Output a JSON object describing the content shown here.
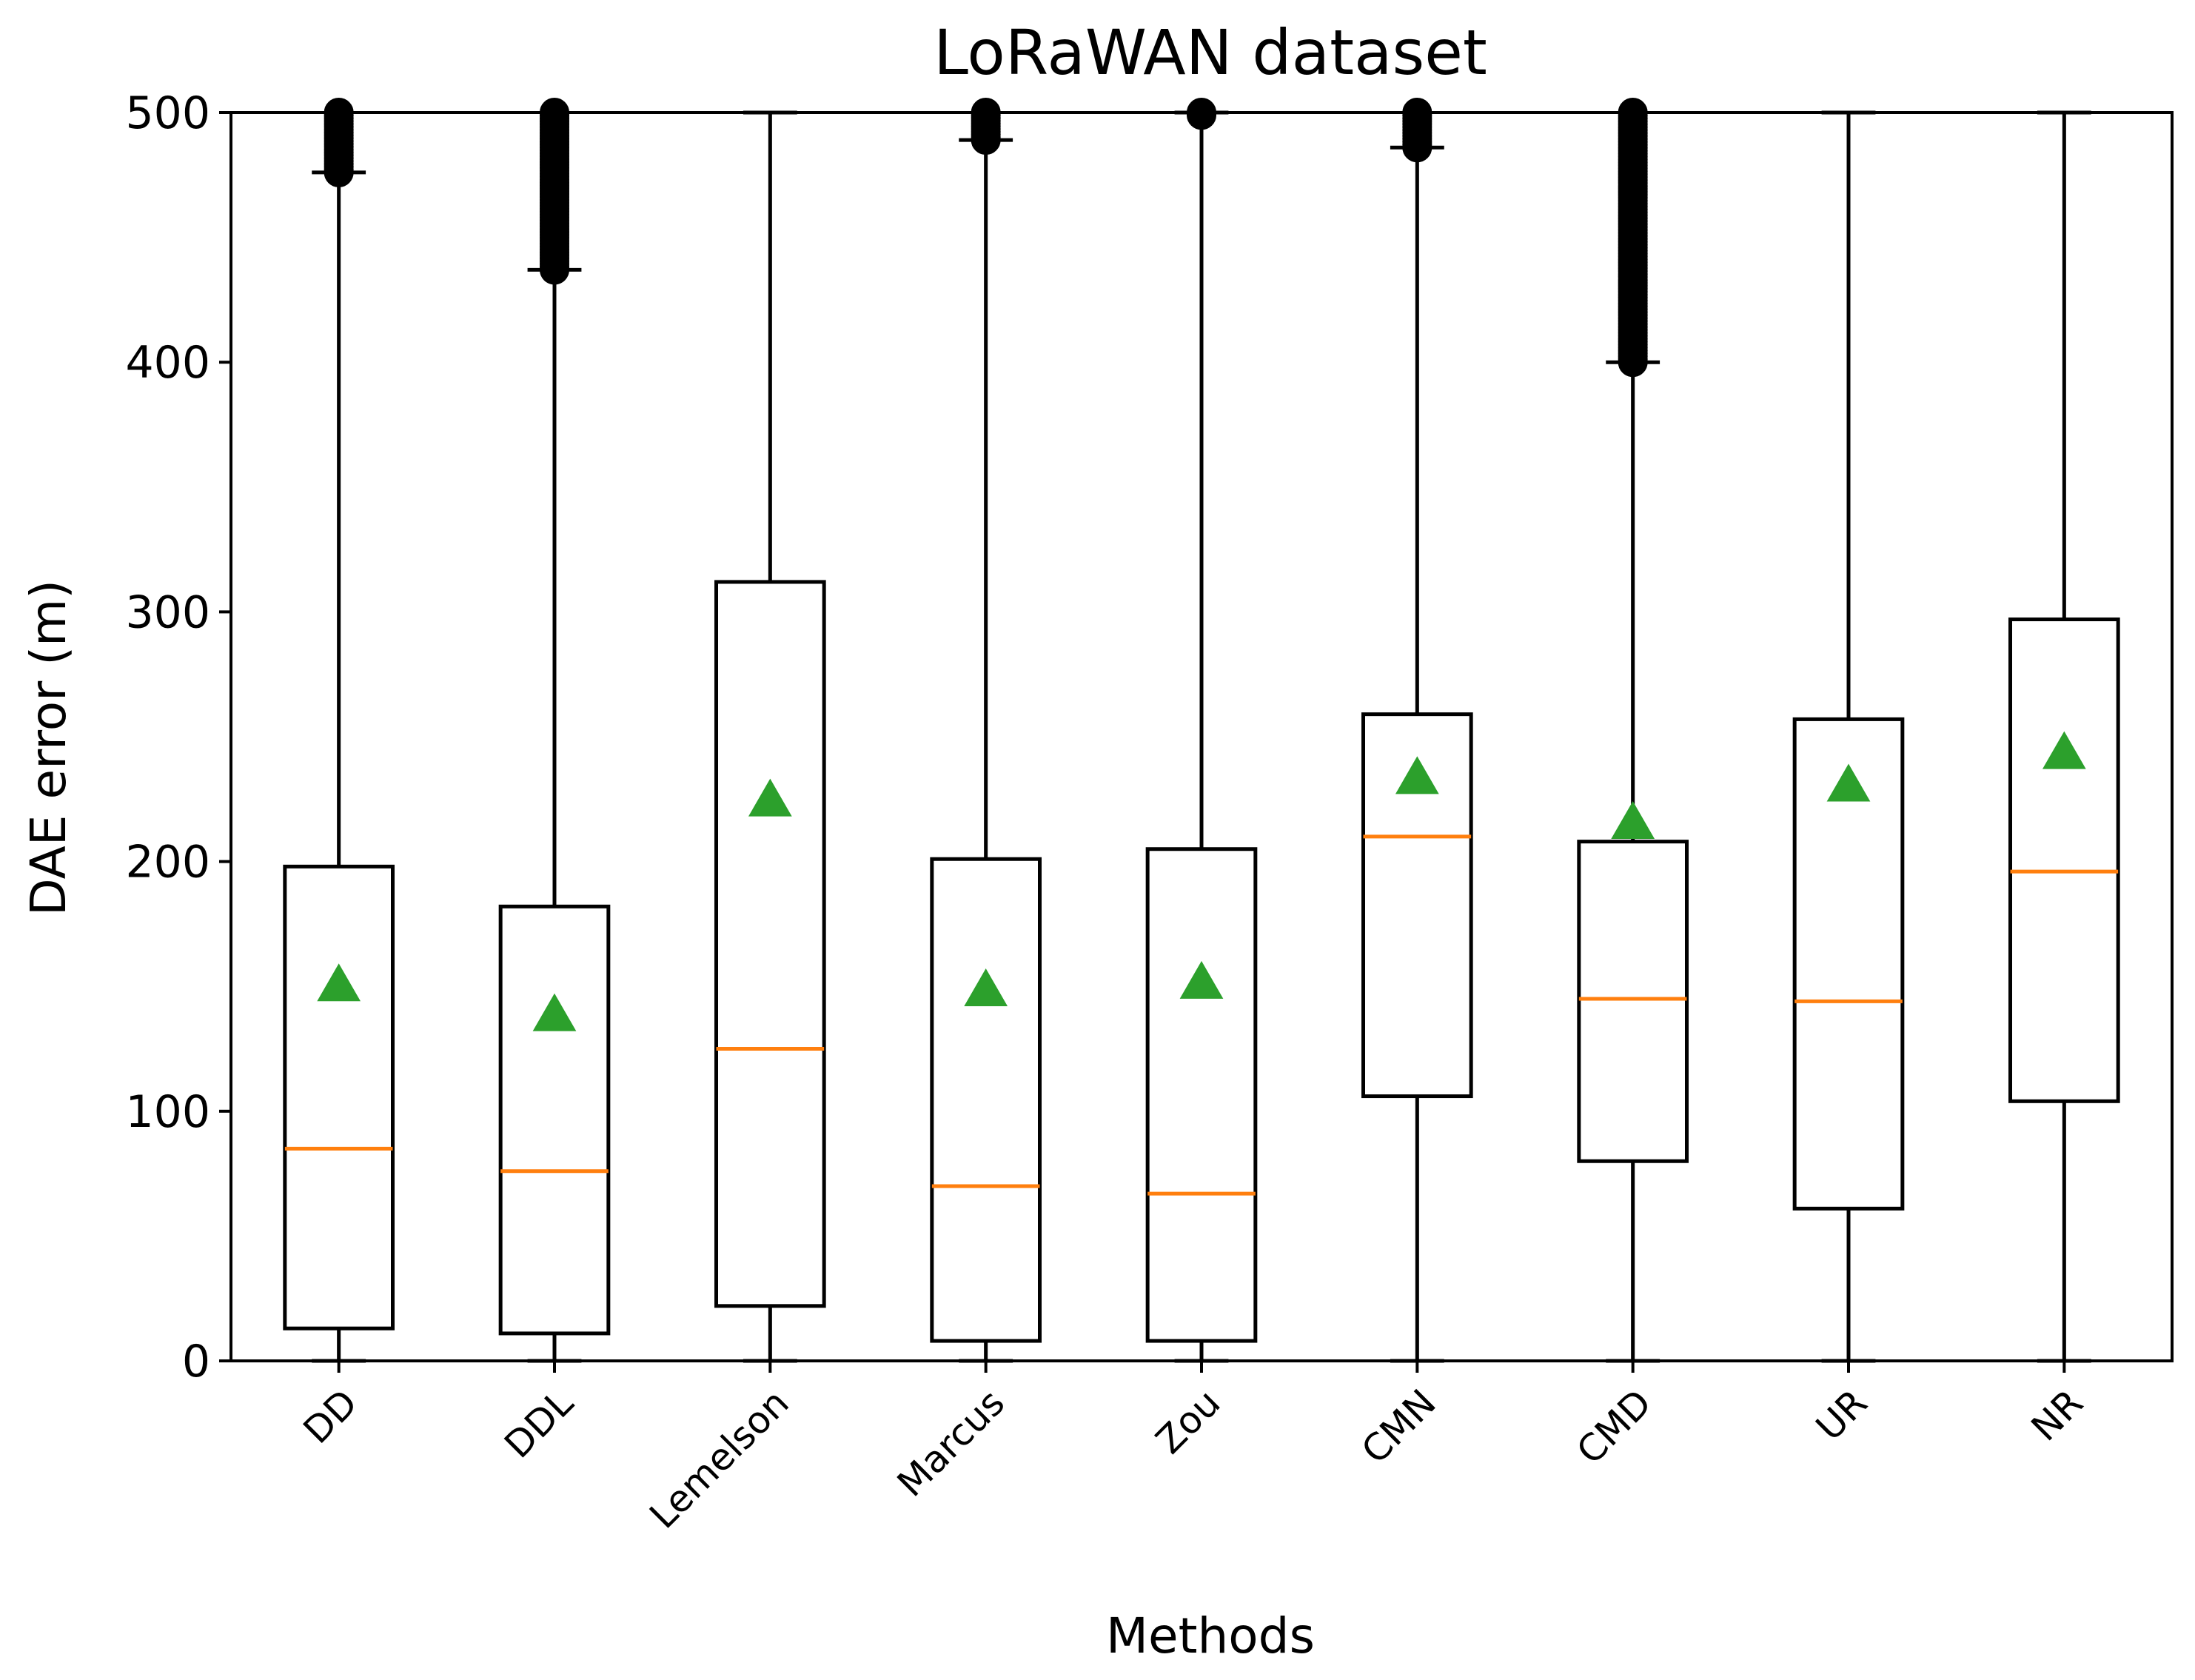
{
  "chart_data": {
    "type": "box",
    "title": "LoRaWAN dataset",
    "xlabel": "Methods",
    "ylabel": "DAE error (m)",
    "ylim": [
      0,
      500
    ],
    "yticks": [
      0,
      100,
      200,
      300,
      400,
      500
    ],
    "grid": false,
    "categories": [
      "DD",
      "DDL",
      "Lemelson",
      "Marcus",
      "Zou",
      "CMN",
      "CMD",
      "UR",
      "NR"
    ],
    "boxes": [
      {
        "name": "DD",
        "whisker_low": 0,
        "q1": 13,
        "median": 85,
        "q3": 198,
        "whisker_high": 476,
        "mean": 150,
        "outliers_from": 476,
        "outliers_to": 500
      },
      {
        "name": "DDL",
        "whisker_low": 0,
        "q1": 11,
        "median": 76,
        "q3": 182,
        "whisker_high": 437,
        "mean": 138,
        "outliers_from": 437,
        "outliers_to": 500
      },
      {
        "name": "Lemelson",
        "whisker_low": 0,
        "q1": 22,
        "median": 125,
        "q3": 312,
        "whisker_high": 500,
        "mean": 224,
        "outliers_from": null,
        "outliers_to": null
      },
      {
        "name": "Marcus",
        "whisker_low": 0,
        "q1": 8,
        "median": 70,
        "q3": 201,
        "whisker_high": 489,
        "mean": 148,
        "outliers_from": 489,
        "outliers_to": 500
      },
      {
        "name": "Zou",
        "whisker_low": 0,
        "q1": 8,
        "median": 67,
        "q3": 205,
        "whisker_high": 500,
        "mean": 151,
        "outliers_from": 499,
        "outliers_to": 500
      },
      {
        "name": "CMN",
        "whisker_low": 0,
        "q1": 106,
        "median": 210,
        "q3": 259,
        "whisker_high": 486,
        "mean": 233,
        "outliers_from": 486,
        "outliers_to": 500
      },
      {
        "name": "CMD",
        "whisker_low": 0,
        "q1": 80,
        "median": 145,
        "q3": 208,
        "whisker_high": 400,
        "mean": 215,
        "outliers_from": 400,
        "outliers_to": 500
      },
      {
        "name": "UR",
        "whisker_low": 0,
        "q1": 61,
        "median": 144,
        "q3": 257,
        "whisker_high": 500,
        "mean": 230,
        "outliers_from": null,
        "outliers_to": null
      },
      {
        "name": "NR",
        "whisker_low": 0,
        "q1": 104,
        "median": 196,
        "q3": 297,
        "whisker_high": 500,
        "mean": 243,
        "outliers_from": null,
        "outliers_to": null
      }
    ],
    "colors": {
      "box": "#000000",
      "median": "#ff7f0e",
      "mean": "#2ca02c",
      "outlier": "#000000"
    }
  }
}
